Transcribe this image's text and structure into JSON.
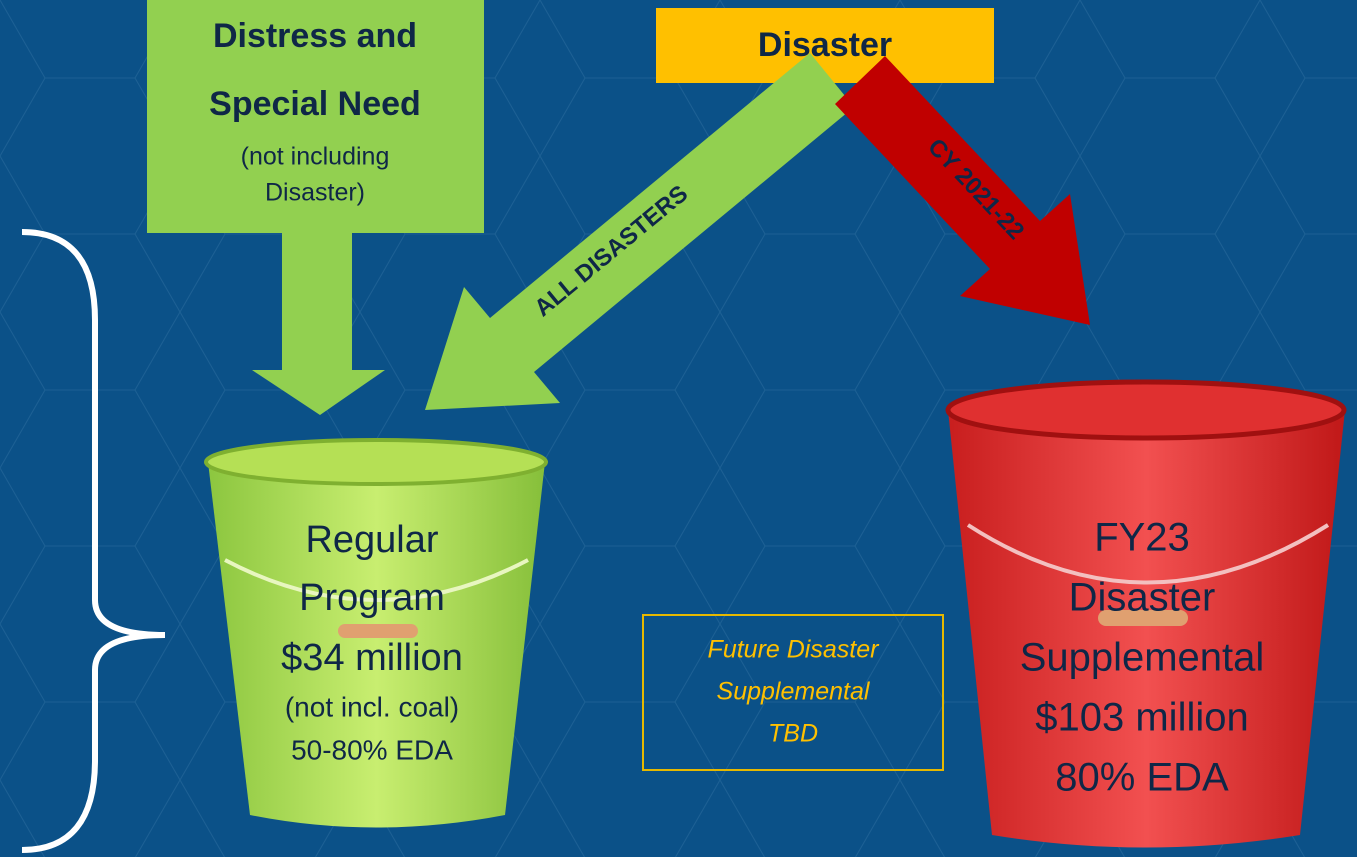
{
  "distress_box": {
    "lines": [
      "Distress and",
      "Special Need",
      "(not including",
      "Disaster)"
    ]
  },
  "disaster_box": {
    "label": "Disaster"
  },
  "arrows": {
    "all_disasters": "ALL DISASTERS",
    "cy": "CY 2021-22"
  },
  "regular_bucket": {
    "lines": [
      "Regular",
      "Program",
      "$34 million",
      "(not incl. coal)",
      "50-80% EDA"
    ]
  },
  "future_box": {
    "lines": [
      "Future Disaster",
      "Supplemental",
      "TBD"
    ]
  },
  "disaster_bucket": {
    "lines": [
      "FY23",
      "Disaster",
      "Supplemental",
      "$103 million",
      "80% EDA"
    ]
  }
}
